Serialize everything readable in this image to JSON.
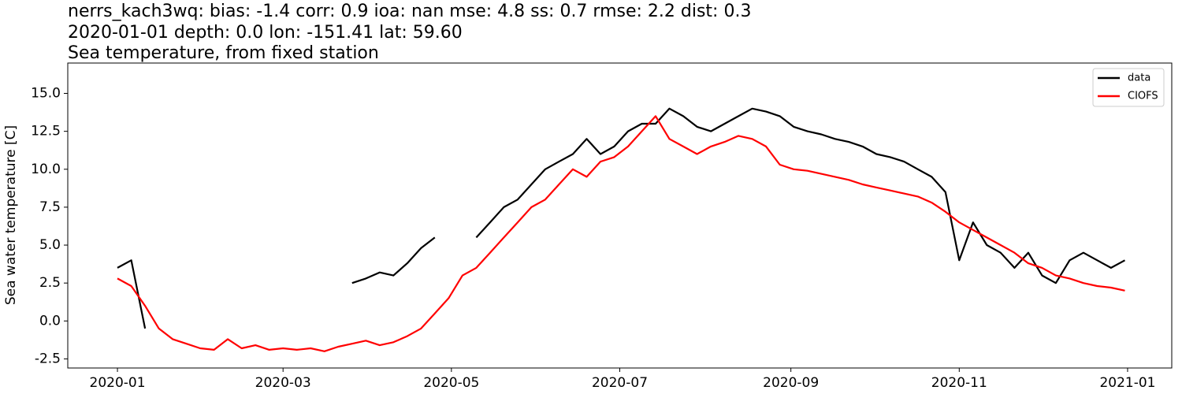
{
  "chart_data": {
    "type": "line",
    "title": [
      "nerrs_kach3wq: bias: -1.4  corr: 0.9  ioa: nan  mse: 4.8  ss: 0.7  rmse: 2.2  dist: 0.3",
      "2020-01-01 depth: 0.0 lon: -151.41 lat: 59.60",
      "Sea temperature, from fixed station"
    ],
    "ylabel": "Sea water temperature [C]",
    "x": [
      "2020-01-01",
      "2020-01-06",
      "2020-01-11",
      "2020-01-16",
      "2020-01-21",
      "2020-01-26",
      "2020-01-31",
      "2020-02-05",
      "2020-02-10",
      "2020-02-15",
      "2020-02-20",
      "2020-02-25",
      "2020-03-01",
      "2020-03-06",
      "2020-03-11",
      "2020-03-16",
      "2020-03-21",
      "2020-03-26",
      "2020-03-31",
      "2020-04-05",
      "2020-04-10",
      "2020-04-15",
      "2020-04-20",
      "2020-04-25",
      "2020-04-30",
      "2020-05-05",
      "2020-05-10",
      "2020-05-15",
      "2020-05-20",
      "2020-05-25",
      "2020-05-30",
      "2020-06-04",
      "2020-06-09",
      "2020-06-14",
      "2020-06-19",
      "2020-06-24",
      "2020-06-29",
      "2020-07-04",
      "2020-07-09",
      "2020-07-14",
      "2020-07-19",
      "2020-07-24",
      "2020-07-29",
      "2020-08-03",
      "2020-08-08",
      "2020-08-13",
      "2020-08-18",
      "2020-08-23",
      "2020-08-28",
      "2020-09-02",
      "2020-09-07",
      "2020-09-12",
      "2020-09-17",
      "2020-09-22",
      "2020-09-27",
      "2020-10-02",
      "2020-10-07",
      "2020-10-12",
      "2020-10-17",
      "2020-10-22",
      "2020-10-27",
      "2020-11-01",
      "2020-11-06",
      "2020-11-11",
      "2020-11-16",
      "2020-11-21",
      "2020-11-26",
      "2020-12-01",
      "2020-12-06",
      "2020-12-11",
      "2020-12-16",
      "2020-12-21",
      "2020-12-26",
      "2020-12-31"
    ],
    "series": [
      {
        "name": "data",
        "color": "#000000",
        "values": [
          3.5,
          4.0,
          -0.5,
          null,
          null,
          null,
          null,
          null,
          null,
          null,
          null,
          null,
          null,
          null,
          null,
          null,
          null,
          2.5,
          2.8,
          3.2,
          3.0,
          3.8,
          4.8,
          5.5,
          null,
          null,
          5.5,
          6.5,
          7.5,
          8.0,
          9.0,
          10.0,
          10.5,
          11.0,
          12.0,
          11.0,
          11.5,
          12.5,
          13.0,
          13.0,
          14.0,
          13.5,
          12.8,
          12.5,
          13.0,
          13.5,
          14.0,
          13.8,
          13.5,
          12.8,
          12.5,
          12.3,
          12.0,
          11.8,
          11.5,
          11.0,
          10.8,
          10.5,
          10.0,
          9.5,
          8.5,
          4.0,
          6.5,
          5.0,
          4.5,
          3.5,
          4.5,
          3.0,
          2.5,
          4.0,
          4.5,
          4.0,
          3.5,
          4.0
        ]
      },
      {
        "name": "CIOFS",
        "color": "#ff0000",
        "values": [
          2.8,
          2.3,
          1.0,
          -0.5,
          -1.2,
          -1.5,
          -1.8,
          -1.9,
          -1.2,
          -1.8,
          -1.6,
          -1.9,
          -1.8,
          -1.9,
          -1.8,
          -2.0,
          -1.7,
          -1.5,
          -1.3,
          -1.6,
          -1.4,
          -1.0,
          -0.5,
          0.5,
          1.5,
          3.0,
          3.5,
          4.5,
          5.5,
          6.5,
          7.5,
          8.0,
          9.0,
          10.0,
          9.5,
          10.5,
          10.8,
          11.5,
          12.5,
          13.5,
          12.0,
          11.5,
          11.0,
          11.5,
          11.8,
          12.2,
          12.0,
          11.5,
          10.3,
          10.0,
          9.9,
          9.7,
          9.5,
          9.3,
          9.0,
          8.8,
          8.6,
          8.4,
          8.2,
          7.8,
          7.2,
          6.5,
          6.0,
          5.5,
          5.0,
          4.5,
          3.8,
          3.5,
          3.0,
          2.8,
          2.5,
          2.3,
          2.2,
          2.0
        ]
      }
    ],
    "xlim": [
      "2019-12-14",
      "2021-01-17"
    ],
    "xticks": [
      {
        "value": "2020-01-01",
        "label": "2020-01"
      },
      {
        "value": "2020-03-01",
        "label": "2020-03"
      },
      {
        "value": "2020-05-01",
        "label": "2020-05"
      },
      {
        "value": "2020-07-01",
        "label": "2020-07"
      },
      {
        "value": "2020-09-01",
        "label": "2020-09"
      },
      {
        "value": "2020-11-01",
        "label": "2020-11"
      },
      {
        "value": "2021-01-01",
        "label": "2021-01"
      }
    ],
    "ylim": [
      -3.1,
      17.0
    ],
    "yticks": [
      -2.5,
      {
        "value": 0,
        "label": "0.0"
      },
      2.5,
      {
        "value": 5,
        "label": "5.0"
      },
      7.5,
      {
        "value": 10,
        "label": "10.0"
      },
      12.5,
      {
        "value": 15,
        "label": "15.0"
      }
    ],
    "grid": false,
    "legend": "upper right"
  }
}
